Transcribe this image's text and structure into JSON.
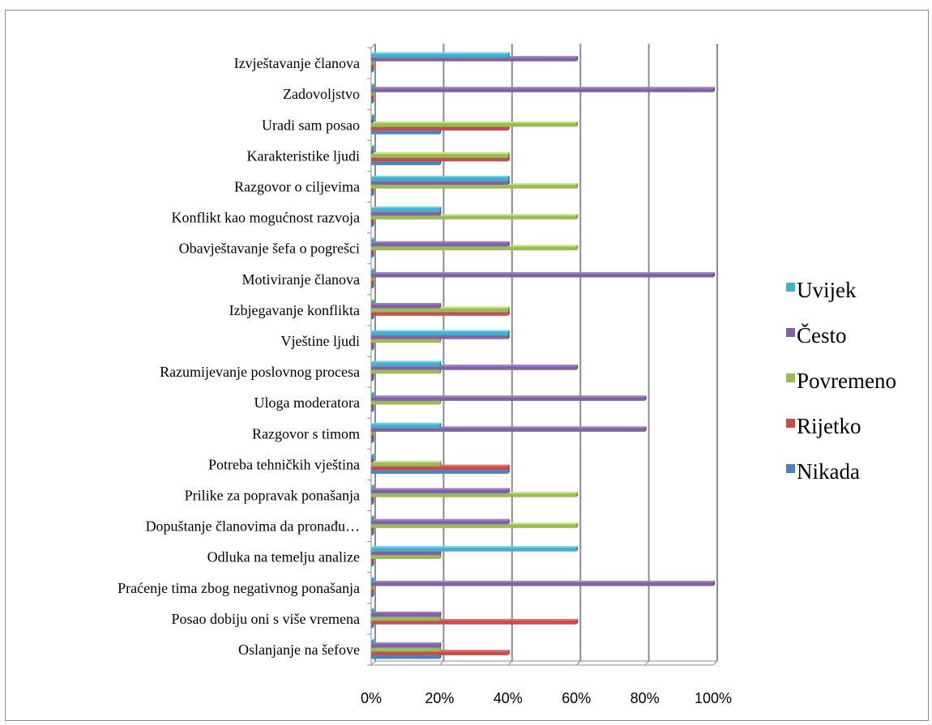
{
  "chart_data": {
    "type": "bar",
    "orientation": "horizontal",
    "categories": [
      "Oslanjanje na šefove",
      "Posao dobiju oni s više vremena",
      "Praćenje tima zbog negativnog ponašanja",
      "Odluka na temelju analize",
      "Dopuštanje članovima da pronađu…",
      "Prilike za popravak ponašanja",
      "Potreba tehničkih vještina",
      "Razgovor s timom",
      "Uloga moderatora",
      "Razumijevanje poslovnog procesa",
      "Vještine ljudi",
      "Izbjegavanje konflikta",
      "Motiviranje članova",
      "Obavještavanje šefa o pogrešci",
      "Konflikt kao mogućnost razvoja",
      "Razgovor o ciljevima",
      "Karakteristike ljudi",
      "Uradi sam posao",
      "Zadovoljstvo",
      "Izvještavanje članova"
    ],
    "series": [
      {
        "name": "Nikada",
        "color": "#4f81bd",
        "values": [
          20,
          0,
          0,
          0,
          0,
          0,
          40,
          0,
          0,
          0,
          0,
          0,
          0,
          0,
          0,
          0,
          20,
          20,
          0,
          0
        ]
      },
      {
        "name": "Rijetko",
        "color": "#c0504d",
        "values": [
          40,
          60,
          0,
          0,
          0,
          0,
          40,
          0,
          0,
          0,
          0,
          40,
          0,
          0,
          0,
          0,
          40,
          40,
          0,
          0
        ]
      },
      {
        "name": "Povremeno",
        "color": "#9bbb59",
        "values": [
          20,
          20,
          0,
          20,
          60,
          60,
          20,
          0,
          20,
          20,
          20,
          40,
          0,
          60,
          60,
          60,
          40,
          60,
          0,
          0
        ]
      },
      {
        "name": "Često",
        "color": "#8064a2",
        "values": [
          20,
          20,
          100,
          20,
          40,
          40,
          0,
          80,
          80,
          60,
          40,
          20,
          100,
          40,
          20,
          40,
          0,
          0,
          100,
          60
        ]
      },
      {
        "name": "Uvijek",
        "color": "#4bacc6",
        "values": [
          0,
          0,
          0,
          60,
          0,
          0,
          0,
          20,
          0,
          20,
          40,
          0,
          0,
          0,
          20,
          40,
          0,
          0,
          0,
          40
        ]
      }
    ],
    "xlim": [
      0,
      100
    ],
    "xticks": [
      0,
      20,
      40,
      60,
      80,
      100
    ],
    "xtick_labels": [
      "0%",
      "20%",
      "40%",
      "60%",
      "80%",
      "100%"
    ],
    "grid": "vertical",
    "legend_position": "right",
    "legend_order": [
      "Uvijek",
      "Često",
      "Povremeno",
      "Rijetko",
      "Nikada"
    ]
  }
}
